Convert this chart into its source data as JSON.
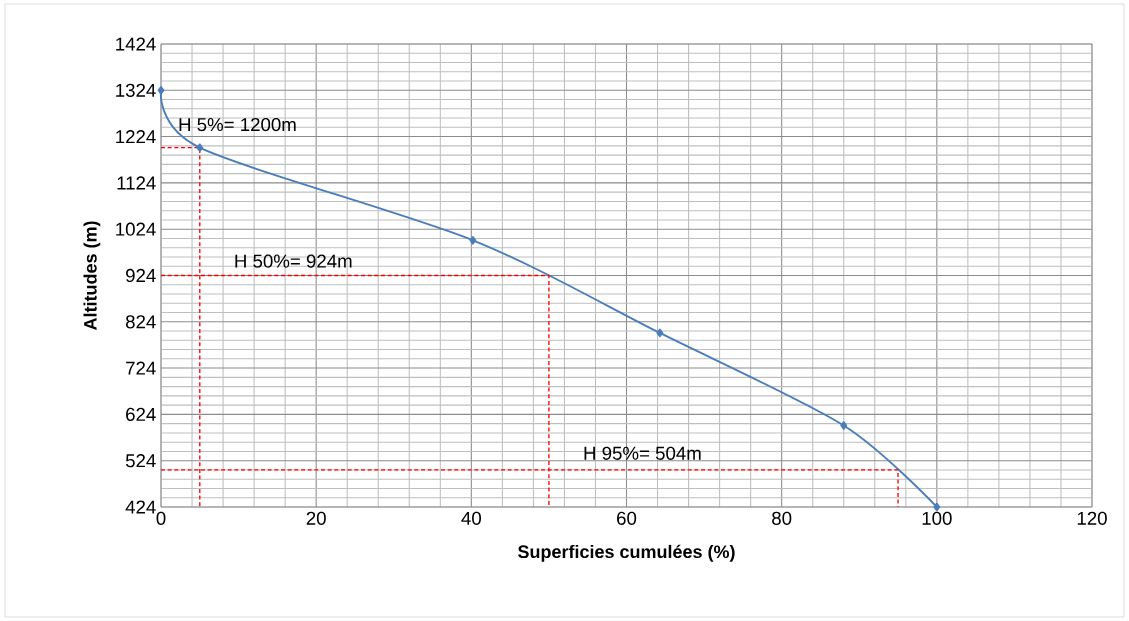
{
  "chart_data": {
    "type": "line",
    "xlabel": "Superficies cumulées (%)",
    "ylabel": "Altitudes (m)",
    "xlim": [
      0,
      120
    ],
    "xticks": [
      0,
      20,
      40,
      60,
      80,
      100,
      120
    ],
    "ylim": [
      424,
      1424
    ],
    "yticks": [
      424,
      524,
      624,
      724,
      824,
      924,
      1024,
      1124,
      1224,
      1324,
      1424
    ],
    "grid": true,
    "marker": "diamond",
    "series": [
      {
        "color": "#4a7ebb",
        "x": [
          0,
          5,
          40.2,
          64.3,
          88,
          100
        ],
        "values": [
          1324,
          1200,
          1000,
          800,
          600,
          424
        ]
      },
      {
        "color": "#ff0000",
        "line_style": "dashed",
        "marker": "none",
        "x": [
          0,
          5,
          5
        ],
        "values": [
          1200,
          1200,
          424
        ]
      },
      {
        "color": "#ff0000",
        "line_style": "dashed",
        "marker": "none",
        "x": [
          0,
          50,
          50
        ],
        "values": [
          924,
          924,
          424
        ]
      },
      {
        "color": "#ff0000",
        "line_style": "dashed",
        "marker": "none",
        "x": [
          0,
          95,
          95
        ],
        "values": [
          504,
          504,
          424
        ]
      }
    ],
    "annotations": [
      "H 5%= 1200m",
      "H 50%= 924m",
      "H 95%= 504m"
    ]
  }
}
